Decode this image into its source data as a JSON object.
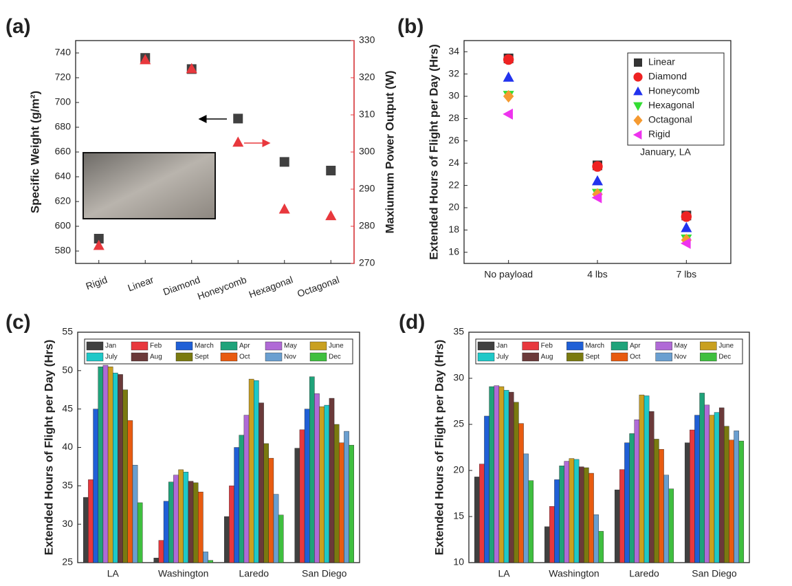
{
  "chart_data": [
    {
      "type": "scatter",
      "panel_label": "(a)",
      "categories": [
        "Rigid",
        "Linear",
        "Diamond",
        "Honeycomb",
        "Hexagonal",
        "Octagonal"
      ],
      "y_label": "Specific Weight (g/m²)",
      "y2_label": "Maxiumum Power Output (W)",
      "ylim": [
        570,
        750
      ],
      "yticks": [
        580,
        600,
        620,
        640,
        660,
        680,
        700,
        720,
        740
      ],
      "y2lim": [
        270,
        330
      ],
      "y2ticks": [
        270,
        280,
        290,
        300,
        310,
        320,
        330
      ],
      "series": [
        {
          "color": "#404040",
          "marker": "square",
          "values": [
            590,
            736,
            727,
            687,
            652,
            645
          ]
        },
        {
          "color": "#e8383d",
          "marker": "triangle-up",
          "axis": "y2",
          "values": [
            274.8,
            324.8,
            322.4,
            302.6,
            284.6,
            282.8
          ]
        }
      ]
    },
    {
      "type": "scatter",
      "panel_label": "(b)",
      "categories": [
        "No payload",
        "4 lbs",
        "7 lbs"
      ],
      "y_label": "Extended Hours of Flight per Day (Hrs)",
      "annotation": "January, LA",
      "ylim": [
        15,
        35
      ],
      "yticks": [
        16,
        18,
        20,
        22,
        24,
        26,
        28,
        30,
        32,
        34
      ],
      "legend": "upper right",
      "series": [
        {
          "name": "Linear",
          "color": "#333333",
          "marker": "square",
          "values": [
            33.4,
            23.8,
            19.3
          ]
        },
        {
          "name": "Diamond",
          "color": "#ee2222",
          "marker": "circle",
          "values": [
            33.3,
            23.7,
            19.2
          ]
        },
        {
          "name": "Honeycomb",
          "color": "#2233ee",
          "marker": "triangle-up",
          "values": [
            31.7,
            22.4,
            18.2
          ]
        },
        {
          "name": "Hexagonal",
          "color": "#33dd33",
          "marker": "triangle-down",
          "values": [
            30.1,
            21.3,
            17.2
          ]
        },
        {
          "name": "Octagonal",
          "color": "#f59a30",
          "marker": "diamond",
          "values": [
            30.0,
            21.2,
            17.1
          ]
        },
        {
          "name": "Rigid",
          "color": "#ee33ee",
          "marker": "triangle-left",
          "values": [
            28.4,
            20.9,
            16.8
          ]
        }
      ]
    },
    {
      "type": "bar",
      "panel_label": "(c)",
      "categories": [
        "LA",
        "Washington",
        "Laredo",
        "San Diego"
      ],
      "y_label": "Extended Hours of Flight per Day (Hrs)",
      "ylim": [
        25,
        55
      ],
      "yticks": [
        25,
        30,
        35,
        40,
        45,
        50,
        55
      ],
      "legend": "upper center",
      "series": [
        {
          "name": "Jan",
          "color": "#404040",
          "values": [
            33.5,
            25.6,
            31.0,
            39.9
          ]
        },
        {
          "name": "Feb",
          "color": "#e8383d",
          "values": [
            35.8,
            27.9,
            35.0,
            42.3
          ]
        },
        {
          "name": "March",
          "color": "#1f5fd6",
          "values": [
            45.0,
            33.0,
            40.0,
            45.0
          ]
        },
        {
          "name": "Apr",
          "color": "#1fa37a",
          "values": [
            50.5,
            35.5,
            41.6,
            49.2
          ]
        },
        {
          "name": "May",
          "color": "#b06ad6",
          "values": [
            50.7,
            36.4,
            44.2,
            47.0
          ]
        },
        {
          "name": "June",
          "color": "#c9a020",
          "values": [
            50.5,
            37.1,
            48.9,
            45.3
          ]
        },
        {
          "name": "July",
          "color": "#1ec8c8",
          "values": [
            49.7,
            36.8,
            48.7,
            45.5
          ]
        },
        {
          "name": "Aug",
          "color": "#6b3a3a",
          "values": [
            49.5,
            35.6,
            45.8,
            46.4
          ]
        },
        {
          "name": "Sept",
          "color": "#7a7a10",
          "values": [
            47.5,
            35.4,
            40.5,
            43.0
          ]
        },
        {
          "name": "Oct",
          "color": "#e85b10",
          "values": [
            43.5,
            34.2,
            38.6,
            40.6
          ]
        },
        {
          "name": "Nov",
          "color": "#6a9fd0",
          "values": [
            37.7,
            26.4,
            33.9,
            42.1
          ]
        },
        {
          "name": "Dec",
          "color": "#3fbf3f",
          "values": [
            32.8,
            25.3,
            31.2,
            40.3
          ]
        }
      ]
    },
    {
      "type": "bar",
      "panel_label": "(d)",
      "categories": [
        "LA",
        "Washington",
        "Laredo",
        "San Diego"
      ],
      "y_label": "Extended Hours of Flight per Day (Hrs)",
      "ylim": [
        10,
        35
      ],
      "yticks": [
        10,
        15,
        20,
        25,
        30,
        35
      ],
      "legend": "upper center",
      "series": [
        {
          "name": "Jan",
          "color": "#404040",
          "values": [
            19.3,
            13.9,
            17.9,
            23.0
          ]
        },
        {
          "name": "Feb",
          "color": "#e8383d",
          "values": [
            20.7,
            16.1,
            20.1,
            24.4
          ]
        },
        {
          "name": "March",
          "color": "#1f5fd6",
          "values": [
            25.9,
            19.0,
            23.0,
            26.0
          ]
        },
        {
          "name": "Apr",
          "color": "#1fa37a",
          "values": [
            29.1,
            20.5,
            24.0,
            28.4
          ]
        },
        {
          "name": "May",
          "color": "#b06ad6",
          "values": [
            29.2,
            21.0,
            25.5,
            27.1
          ]
        },
        {
          "name": "June",
          "color": "#c9a020",
          "values": [
            29.1,
            21.3,
            28.2,
            26.0
          ]
        },
        {
          "name": "July",
          "color": "#1ec8c8",
          "values": [
            28.7,
            21.2,
            28.1,
            26.3
          ]
        },
        {
          "name": "Aug",
          "color": "#6b3a3a",
          "values": [
            28.5,
            20.4,
            26.4,
            26.8
          ]
        },
        {
          "name": "Sept",
          "color": "#7a7a10",
          "values": [
            27.4,
            20.3,
            23.4,
            24.8
          ]
        },
        {
          "name": "Oct",
          "color": "#e85b10",
          "values": [
            25.1,
            19.7,
            22.3,
            23.3
          ]
        },
        {
          "name": "Nov",
          "color": "#6a9fd0",
          "values": [
            21.8,
            15.2,
            19.5,
            24.3
          ]
        },
        {
          "name": "Dec",
          "color": "#3fbf3f",
          "values": [
            18.9,
            13.4,
            18.0,
            23.2
          ]
        }
      ]
    }
  ]
}
